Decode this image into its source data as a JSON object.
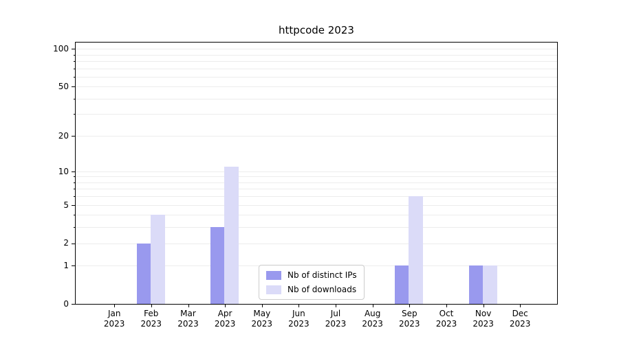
{
  "title": "httpcode 2023",
  "chart_data": {
    "type": "bar",
    "title": "httpcode 2023",
    "x_tick_labels": [
      {
        "month": "Jan",
        "year": "2023"
      },
      {
        "month": "Feb",
        "year": "2023"
      },
      {
        "month": "Mar",
        "year": "2023"
      },
      {
        "month": "Apr",
        "year": "2023"
      },
      {
        "month": "May",
        "year": "2023"
      },
      {
        "month": "Jun",
        "year": "2023"
      },
      {
        "month": "Jul",
        "year": "2023"
      },
      {
        "month": "Aug",
        "year": "2023"
      },
      {
        "month": "Sep",
        "year": "2023"
      },
      {
        "month": "Oct",
        "year": "2023"
      },
      {
        "month": "Nov",
        "year": "2023"
      },
      {
        "month": "Dec",
        "year": "2023"
      }
    ],
    "series": [
      {
        "name": "Nb of distinct IPs",
        "color": "#9999ee",
        "values": [
          0,
          2,
          0,
          3,
          0,
          0,
          0,
          0,
          1,
          0,
          1,
          0
        ]
      },
      {
        "name": "Nb of downloads",
        "color": "#dbdbf8",
        "values": [
          0,
          4,
          0,
          11,
          0,
          0,
          0,
          0,
          6,
          0,
          1,
          0
        ]
      }
    ],
    "y_axis": {
      "scale": "log1p",
      "major_ticks": [
        0,
        1,
        2,
        5,
        10,
        20,
        50,
        100
      ],
      "minor_ticks": [
        3,
        4,
        6,
        7,
        8,
        9,
        30,
        40,
        60,
        70,
        80,
        90
      ],
      "gridline_values": [
        1,
        2,
        3,
        4,
        5,
        6,
        7,
        8,
        9,
        10,
        20,
        30,
        40,
        50,
        60,
        70,
        80,
        90,
        100
      ],
      "ylim_bottom": 0,
      "ylim_top": 112
    },
    "legend": {
      "entries": [
        "Nb of distinct IPs",
        "Nb of downloads"
      ],
      "position": "lower-center-inside"
    },
    "colors": {
      "grid": "#ececec",
      "axis": "#000000",
      "background": "#ffffff"
    }
  }
}
